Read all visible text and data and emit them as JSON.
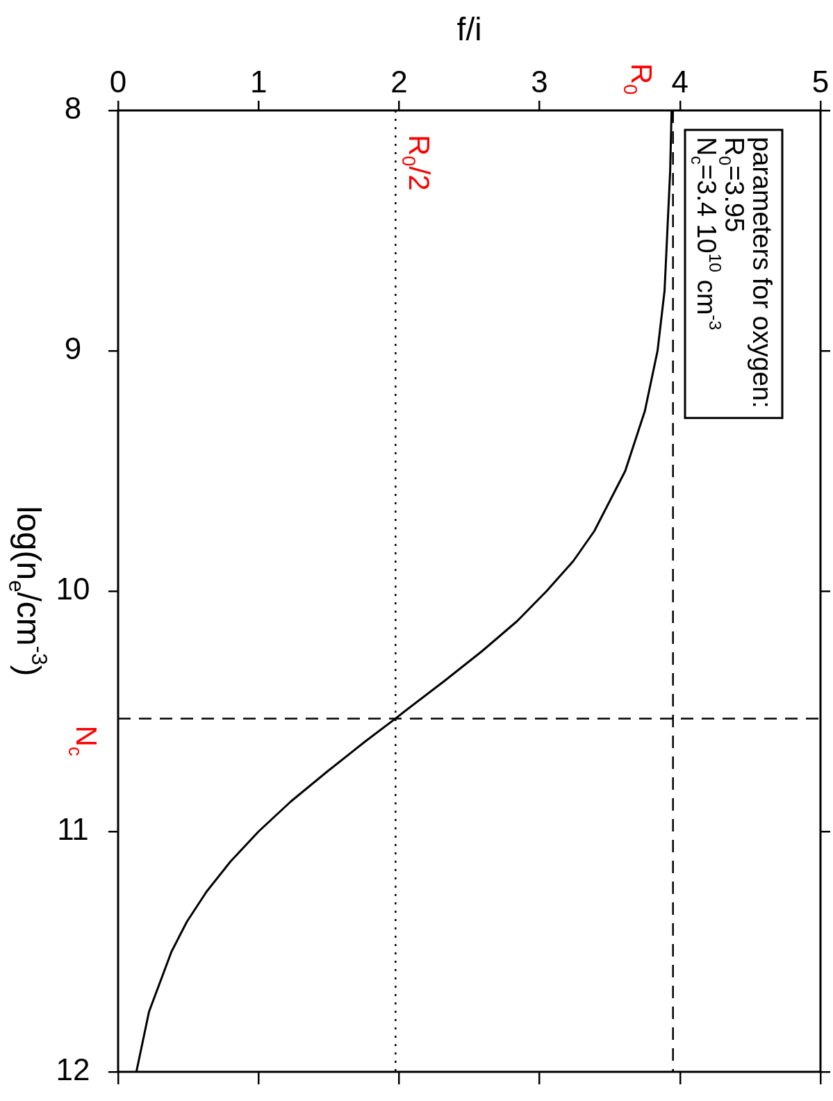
{
  "chart_data": {
    "type": "line",
    "xlabel": "f/i",
    "ylabel": "log(n$_{e}$/cm$^{-3}$)",
    "x": [
      3.94,
      3.93,
      3.91,
      3.89,
      3.84,
      3.75,
      3.61,
      3.39,
      3.24,
      3.05,
      2.84,
      2.59,
      2.32,
      2.04,
      1.975,
      1.76,
      1.49,
      1.23,
      1.0,
      0.8,
      0.63,
      0.49,
      0.38,
      0.22,
      0.13
    ],
    "values": [
      8,
      8.25,
      8.5,
      8.75,
      9,
      9.25,
      9.5,
      9.75,
      9.875,
      10,
      10.125,
      10.25,
      10.375,
      10.5,
      10.53,
      10.625,
      10.75,
      10.875,
      11,
      11.125,
      11.25,
      11.375,
      11.5,
      11.75,
      12
    ],
    "color": "#000000",
    "marker": "none",
    "line_style": "solid",
    "grid": false,
    "legend": false,
    "xlim": [
      0,
      5
    ],
    "ylim": [
      12,
      8
    ],
    "yticks": [
      8,
      9,
      10,
      11,
      12
    ],
    "xticks": [
      0,
      1,
      2,
      3,
      4,
      5
    ],
    "ref_lines": [
      {
        "axis": "x",
        "value": 3.95,
        "label": "R$_{0}$",
        "color": "#000000",
        "line_style": "dashed"
      },
      {
        "axis": "x",
        "value": 1.975,
        "label": "R$_{0}$/2",
        "color": "#000000",
        "line_style": "dotted"
      },
      {
        "axis": "y",
        "value": 10.53,
        "label": "N$_{c}$",
        "color": "#000000",
        "line_style": "dashed"
      }
    ],
    "annotations": [
      "parameters for oxygen:",
      "R$_{0}$=3.95",
      "N$_{c}$=3.4 10$^{10}$ cm$^{-3}$"
    ]
  }
}
